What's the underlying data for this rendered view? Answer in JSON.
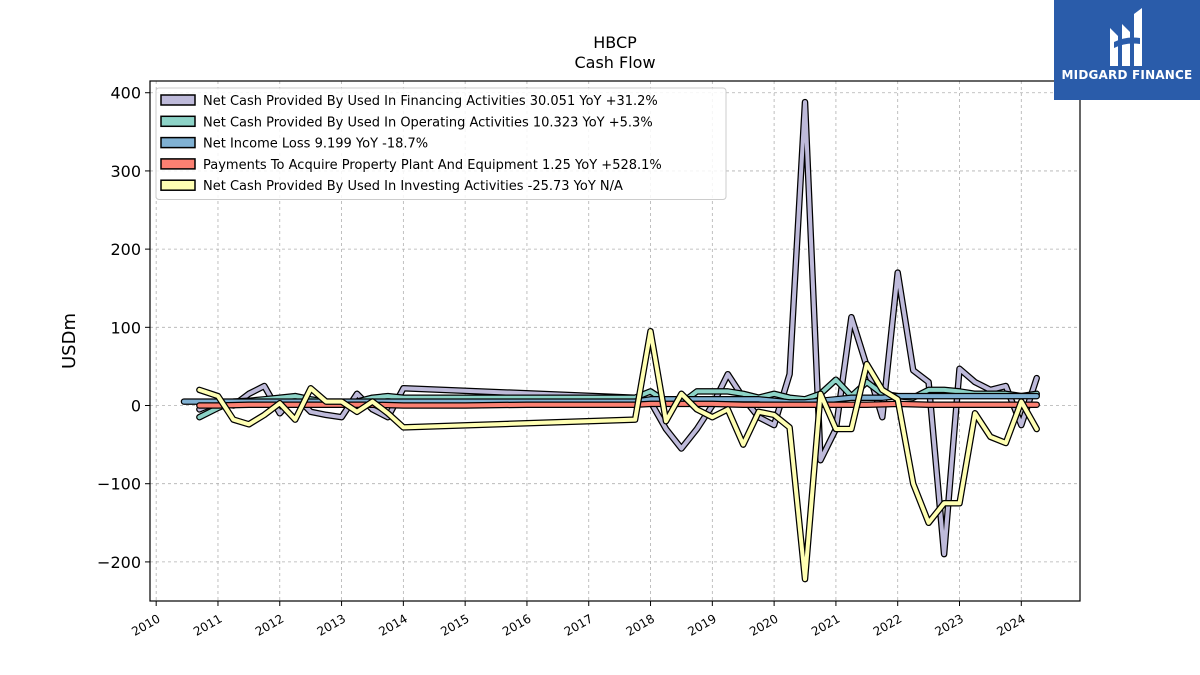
{
  "chart_data": {
    "type": "line",
    "title": "HBCP",
    "subtitle": "Cash Flow",
    "xlabel": "",
    "ylabel": "USDm",
    "xlim": [
      2009.9,
      2024.95
    ],
    "ylim": [
      -250,
      415
    ],
    "x_ticks": [
      2010,
      2011,
      2012,
      2013,
      2014,
      2015,
      2016,
      2017,
      2018,
      2019,
      2020,
      2021,
      2022,
      2023,
      2024
    ],
    "y_ticks": [
      -200,
      -100,
      0,
      100,
      200,
      300,
      400
    ],
    "y_tick_labels": [
      "−200",
      "−100",
      "0",
      "100",
      "200",
      "300",
      "400"
    ],
    "grid": true,
    "legend_position": "top-left",
    "series": [
      {
        "name": "Net Cash Provided By Used In Financing Activities",
        "legend": "Net Cash Provided By Used In Financing Activities  30.051 YoY +31.2%",
        "color": "#bebada",
        "x": [
          2010.7,
          2011.0,
          2011.25,
          2011.5,
          2011.75,
          2012.0,
          2012.25,
          2012.5,
          2012.75,
          2013.0,
          2013.25,
          2013.5,
          2013.75,
          2014.0,
          2017.75,
          2018.0,
          2018.25,
          2018.5,
          2018.75,
          2019.0,
          2019.25,
          2019.5,
          2019.75,
          2020.0,
          2020.25,
          2020.5,
          2020.75,
          2021.0,
          2021.25,
          2021.5,
          2021.75,
          2022.0,
          2022.25,
          2022.5,
          2022.75,
          2023.0,
          2023.25,
          2023.5,
          2023.75,
          2024.0,
          2024.25
        ],
        "y": [
          -5,
          5,
          0,
          15,
          25,
          -10,
          12,
          -8,
          -12,
          -15,
          15,
          -5,
          -15,
          22,
          10,
          5,
          -30,
          -55,
          -30,
          0,
          40,
          10,
          -15,
          -25,
          40,
          388,
          -70,
          -30,
          113,
          50,
          -15,
          170,
          45,
          30,
          -190,
          47,
          30,
          20,
          25,
          -25,
          35
        ]
      },
      {
        "name": "Net Cash Provided By Used In Operating Activities",
        "legend": "Net Cash Provided By Used In Operating Activities  10.323 YoY +5.3%",
        "color": "#8dd3c7",
        "x": [
          2010.7,
          2011.0,
          2011.25,
          2011.5,
          2011.75,
          2012.0,
          2012.25,
          2012.5,
          2012.75,
          2013.0,
          2013.25,
          2013.5,
          2013.75,
          2014.0,
          2017.75,
          2018.0,
          2018.25,
          2018.5,
          2018.75,
          2019.0,
          2019.25,
          2019.5,
          2019.75,
          2020.0,
          2020.25,
          2020.5,
          2020.75,
          2021.0,
          2021.25,
          2021.5,
          2021.75,
          2022.0,
          2022.25,
          2022.5,
          2022.75,
          2023.0,
          2023.25,
          2023.5,
          2023.75,
          2024.0,
          2024.25
        ],
        "y": [
          -15,
          -3,
          5,
          6,
          8,
          10,
          12,
          8,
          5,
          3,
          5,
          10,
          12,
          10,
          10,
          18,
          5,
          3,
          18,
          18,
          18,
          15,
          10,
          15,
          10,
          8,
          15,
          33,
          12,
          30,
          15,
          12,
          10,
          20,
          20,
          18,
          15,
          15,
          15,
          12,
          15
        ]
      },
      {
        "name": "Net Income Loss",
        "legend": "Net Income Loss  9.199 YoY -18.7%",
        "color": "#80b1d3",
        "x": [
          2010.45,
          2010.7,
          2011.0,
          2011.25,
          2011.5,
          2011.75,
          2012.0,
          2012.25,
          2012.5,
          2012.75,
          2013.0,
          2013.25,
          2013.5,
          2013.75,
          2014.0,
          2017.75,
          2018.0,
          2018.25,
          2018.5,
          2018.75,
          2019.0,
          2019.25,
          2019.5,
          2019.75,
          2020.0,
          2020.25,
          2020.5,
          2020.75,
          2021.0,
          2021.25,
          2021.5,
          2021.75,
          2022.0,
          2022.25,
          2022.5,
          2022.75,
          2023.0,
          2023.25,
          2023.5,
          2023.75,
          2024.0,
          2024.25
        ],
        "y": [
          5,
          5,
          5,
          5,
          5,
          5,
          5,
          5,
          5,
          5,
          5,
          5,
          5,
          5,
          5,
          5,
          8,
          8,
          8,
          8,
          8,
          8,
          8,
          8,
          6,
          4,
          4,
          6,
          8,
          10,
          10,
          10,
          12,
          12,
          12,
          12,
          12,
          12,
          12,
          12,
          12,
          12
        ]
      },
      {
        "name": "Payments To Acquire Property Plant And Equipment",
        "legend": "Payments To Acquire Property Plant And Equipment  1.25 YoY +528.1%",
        "color": "#fb8072",
        "x": [
          2010.7,
          2011.0,
          2011.5,
          2012.0,
          2012.5,
          2013.0,
          2013.5,
          2014.0,
          2015.0,
          2016.0,
          2017.0,
          2017.75,
          2018.0,
          2018.5,
          2019.0,
          2019.5,
          2020.0,
          2020.5,
          2021.0,
          2021.5,
          2022.0,
          2022.5,
          2023.0,
          2023.5,
          2024.0,
          2024.25
        ],
        "y": [
          0,
          0,
          1,
          1,
          1,
          1,
          1,
          0,
          0,
          1,
          1,
          1,
          2,
          2,
          2,
          1,
          1,
          1,
          1,
          1,
          2,
          1,
          1,
          1,
          1,
          1
        ]
      },
      {
        "name": "Net Cash Provided By Used In Investing Activities",
        "legend": "Net Cash Provided By Used In Investing Activities  -25.73 YoY N/A",
        "color": "#ffffb3",
        "x": [
          2010.7,
          2011.0,
          2011.25,
          2011.5,
          2011.75,
          2012.0,
          2012.25,
          2012.5,
          2012.75,
          2013.0,
          2013.25,
          2013.5,
          2013.75,
          2014.0,
          2017.75,
          2018.0,
          2018.25,
          2018.5,
          2018.75,
          2019.0,
          2019.25,
          2019.5,
          2019.75,
          2020.0,
          2020.25,
          2020.5,
          2020.75,
          2021.0,
          2021.25,
          2021.5,
          2021.75,
          2022.0,
          2022.25,
          2022.5,
          2022.75,
          2023.0,
          2023.25,
          2023.5,
          2023.75,
          2024.0,
          2024.25
        ],
        "y": [
          20,
          12,
          -18,
          -24,
          -12,
          3,
          -18,
          22,
          5,
          5,
          -8,
          5,
          -10,
          -28,
          -18,
          95,
          -20,
          15,
          -5,
          -15,
          -5,
          -50,
          -8,
          -12,
          -28,
          -222,
          15,
          -30,
          -30,
          53,
          20,
          8,
          -100,
          -150,
          -125,
          -125,
          -10,
          -40,
          -48,
          5,
          -30
        ]
      }
    ]
  },
  "logo": {
    "text": "MIDGARD FINANCE",
    "background": "#2a5caa"
  }
}
